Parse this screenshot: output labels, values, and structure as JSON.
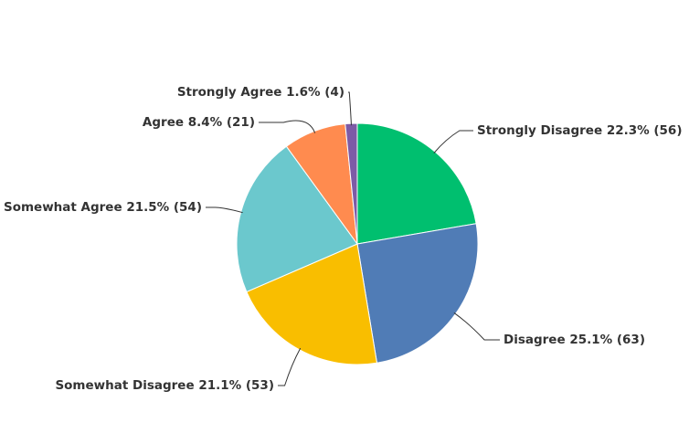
{
  "chart_data": {
    "type": "pie",
    "categories": [
      "Strongly Disagree",
      "Disagree",
      "Somewhat Disagree",
      "Somewhat Agree",
      "Agree",
      "Strongly Agree"
    ],
    "values": [
      22.3,
      25.1,
      21.1,
      21.5,
      8.4,
      1.6
    ],
    "value_labels": [
      "22.3% (56)",
      "25.1% (63)",
      "21.1% (53)",
      "21.5% (54)",
      "8.4% (21)",
      "1.6% (4)"
    ],
    "colors": [
      "#00bf6f",
      "#507cb6",
      "#f9be00",
      "#6bc8cd",
      "#ff8b4f",
      "#7d5ba6"
    ]
  }
}
